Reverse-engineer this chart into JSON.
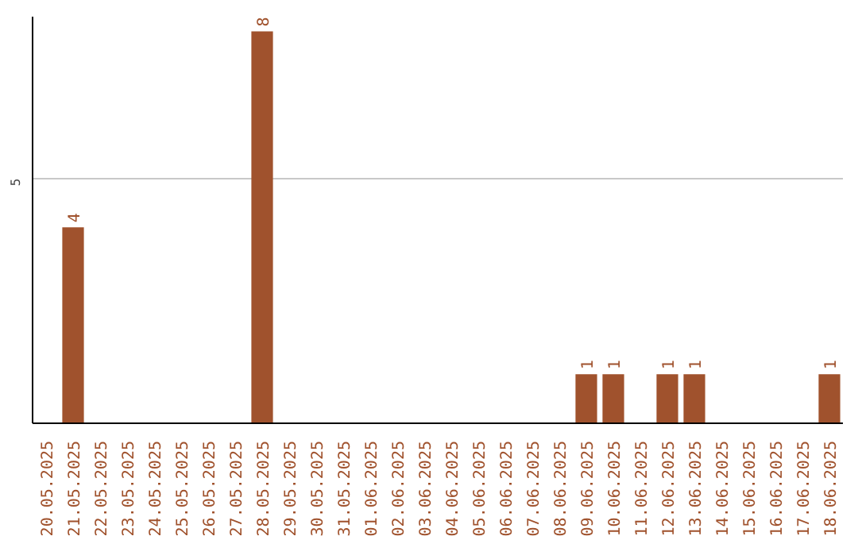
{
  "chart_data": {
    "type": "bar",
    "categories": [
      "20.05.2025",
      "21.05.2025",
      "22.05.2025",
      "23.05.2025",
      "24.05.2025",
      "25.05.2025",
      "26.05.2025",
      "27.05.2025",
      "28.05.2025",
      "29.05.2025",
      "30.05.2025",
      "31.05.2025",
      "01.06.2025",
      "02.06.2025",
      "03.06.2025",
      "04.06.2025",
      "05.06.2025",
      "06.06.2025",
      "07.06.2025",
      "08.06.2025",
      "09.06.2025",
      "10.06.2025",
      "11.06.2025",
      "12.06.2025",
      "13.06.2025",
      "14.06.2025",
      "15.06.2025",
      "16.06.2025",
      "17.06.2025",
      "18.06.2025"
    ],
    "values": [
      0,
      4,
      0,
      0,
      0,
      0,
      0,
      0,
      8,
      0,
      0,
      0,
      0,
      0,
      0,
      0,
      0,
      0,
      0,
      0,
      1,
      1,
      0,
      1,
      1,
      0,
      0,
      0,
      0,
      1
    ],
    "value_labels": [
      null,
      "4",
      null,
      null,
      null,
      null,
      null,
      null,
      "8",
      null,
      null,
      null,
      null,
      null,
      null,
      null,
      null,
      null,
      null,
      null,
      "1",
      "1",
      null,
      "1",
      "1",
      null,
      null,
      null,
      null,
      "1"
    ],
    "color": "#a0522d",
    "ylim": [
      0,
      8.3
    ],
    "yticks": [
      5
    ],
    "grid": "y"
  }
}
